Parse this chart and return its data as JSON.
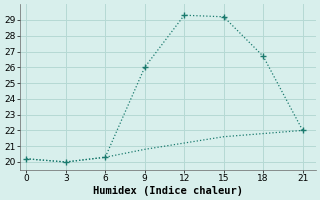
{
  "xlabel": "Humidex (Indice chaleur)",
  "x_upper": [
    0,
    3,
    6,
    9,
    12,
    15,
    18,
    21
  ],
  "y_upper": [
    20.2,
    20.0,
    20.3,
    26.0,
    29.3,
    29.2,
    26.7,
    22.0
  ],
  "x_lower": [
    0,
    3,
    6,
    9,
    12,
    15,
    18,
    21
  ],
  "y_lower": [
    20.2,
    20.0,
    20.3,
    20.8,
    21.2,
    21.6,
    21.8,
    22.0
  ],
  "line_color": "#1a7a6e",
  "bg_color": "#d8efec",
  "grid_color": "#b5d9d4",
  "xlim": [
    -0.5,
    22
  ],
  "ylim": [
    19.5,
    30.0
  ],
  "xticks": [
    0,
    3,
    6,
    9,
    12,
    15,
    18,
    21
  ],
  "yticks": [
    20,
    21,
    22,
    23,
    24,
    25,
    26,
    27,
    28,
    29
  ],
  "tick_fontsize": 6.5,
  "label_fontsize": 7.5
}
